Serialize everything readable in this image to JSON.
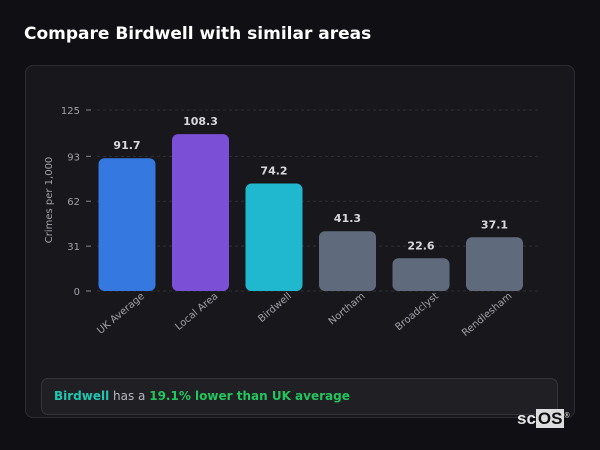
{
  "title": "Compare Birdwell with similar areas",
  "chart_data": {
    "type": "bar",
    "categories": [
      "UK Average",
      "Local Area",
      "Birdwell",
      "Northam",
      "Broadclyst",
      "Rendlesham"
    ],
    "values": [
      91.7,
      108.3,
      74.2,
      41.3,
      22.6,
      37.1
    ],
    "data_labels": [
      "91.7",
      "108.3",
      "74.2",
      "41.3",
      "22.6",
      "37.1"
    ],
    "colors": [
      "#3578e0",
      "#7b4fd6",
      "#1fb8cf",
      "#5f6b7c",
      "#5f6b7c",
      "#5f6b7c"
    ],
    "ylabel": "Crimes per 1,000",
    "xlabel": "",
    "yticks": [
      0,
      31,
      62,
      93,
      125
    ],
    "ylim": [
      0,
      125
    ],
    "grid": true
  },
  "insight": {
    "area": "Birdwell",
    "middle": " has a ",
    "highlight": "19.1% lower than UK average"
  },
  "logo": {
    "text_a": "sc",
    "text_b": "OS",
    "mark": "®"
  }
}
